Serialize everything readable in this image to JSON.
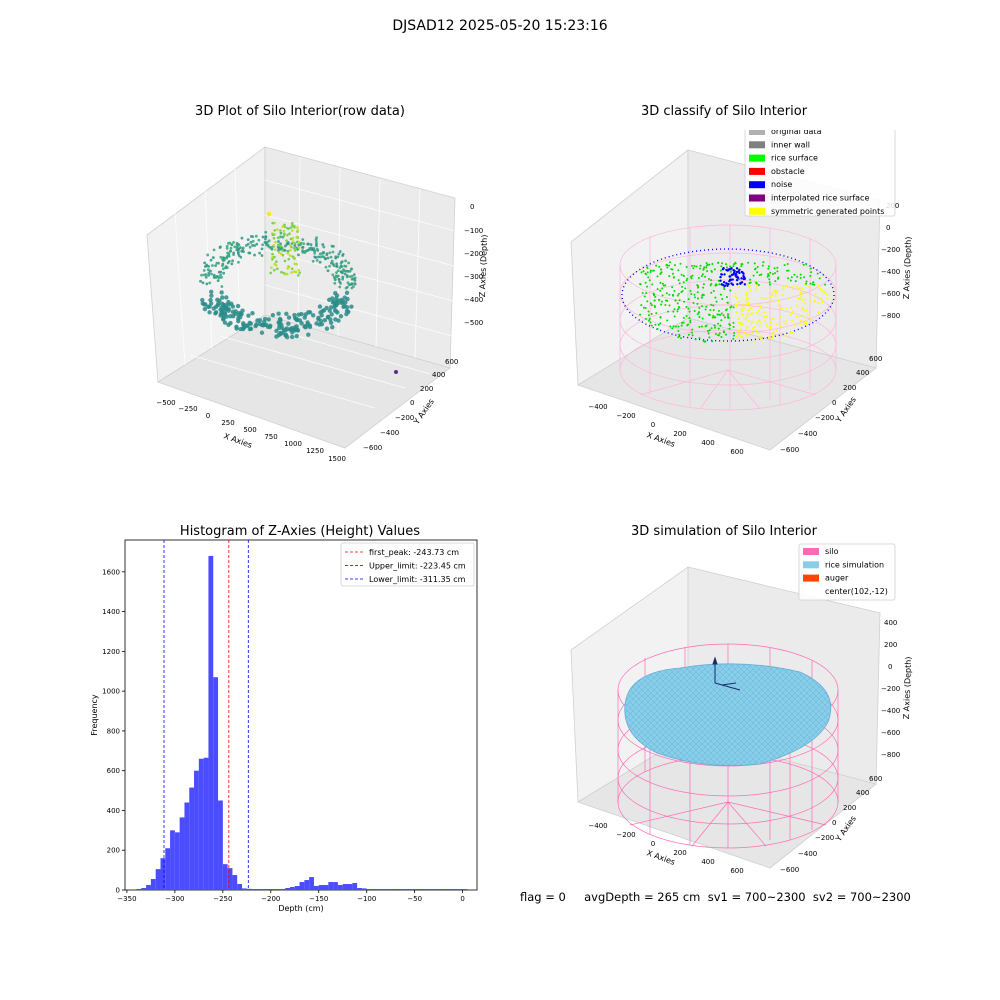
{
  "figure": {
    "suptitle": "DJSAD12 2025-05-20 15:23:16"
  },
  "panels": {
    "raw3d": {
      "title": "3D Plot of Silo Interior(row data)",
      "xlabel": "X Axies",
      "ylabel": "Y Axies",
      "zlabel": "Z Axies (Depth)",
      "xticks": [
        "−500",
        "−250",
        "0",
        "250",
        "500",
        "750",
        "1000",
        "1250",
        "1500"
      ],
      "yticks": [
        "−600",
        "−400",
        "−200",
        "0",
        "200",
        "400",
        "600"
      ],
      "zticks": [
        "0",
        "−100",
        "−200",
        "−300",
        "−400",
        "−500"
      ]
    },
    "classify3d": {
      "title": "3D classify of Silo Interior",
      "xlabel": "X Axies",
      "ylabel": "Y Axies",
      "zlabel": "Z Axies (Depth)",
      "xticks": [
        "−400",
        "−200",
        "0",
        "200",
        "400",
        "600"
      ],
      "yticks": [
        "−600",
        "−400",
        "−200",
        "0",
        "200",
        "400",
        "600"
      ],
      "zticks": [
        "200",
        "0",
        "−200",
        "−400",
        "−600",
        "−800"
      ],
      "legend": [
        {
          "label": "original data",
          "color": "#b0b0b0"
        },
        {
          "label": "inner wall",
          "color": "#808080"
        },
        {
          "label": "rice surface",
          "color": "#00ff00"
        },
        {
          "label": "obstacle",
          "color": "#ff0000"
        },
        {
          "label": "noise",
          "color": "#0000ff"
        },
        {
          "label": "interpolated rice surface",
          "color": "#800080"
        },
        {
          "label": "symmetric generated points",
          "color": "#ffff00"
        }
      ]
    },
    "simulation3d": {
      "title": "3D simulation of Silo Interior",
      "xlabel": "X Axies",
      "ylabel": "Y Axies",
      "zlabel": "Z Axies (Depth)",
      "xticks": [
        "−400",
        "−200",
        "0",
        "200",
        "400",
        "600"
      ],
      "yticks": [
        "−600",
        "−400",
        "−200",
        "0",
        "200",
        "400",
        "600"
      ],
      "zticks": [
        "400",
        "200",
        "0",
        "−200",
        "−400",
        "−600",
        "−800"
      ],
      "legend": [
        {
          "label": "silo",
          "color": "#ff69b4"
        },
        {
          "label": "rice simulation",
          "color": "#87ceeb"
        },
        {
          "label": "auger",
          "color": "#ff4500"
        },
        {
          "label": "center(102,-12)",
          "color": ""
        }
      ]
    },
    "footer": "flag = 0     avgDepth = 265 cm  sv1 = 700~2300  sv2 = 700~2300"
  },
  "chart_data": {
    "type": "bar",
    "title": "Histogram of Z-Axies (Height) Values",
    "xlabel": "Depth (cm)",
    "ylabel": "Frequency",
    "xlim": [
      -352,
      15
    ],
    "ylim": [
      0,
      1760
    ],
    "xticks": [
      -350,
      -300,
      -250,
      -200,
      -150,
      -100,
      -50,
      0
    ],
    "yticks": [
      0,
      200,
      400,
      600,
      800,
      1000,
      1200,
      1400,
      1600
    ],
    "bin_width": 5,
    "bar_color": "#4b4bff",
    "bins_start": [
      -340,
      -335,
      -330,
      -325,
      -320,
      -315,
      -310,
      -305,
      -300,
      -295,
      -290,
      -285,
      -280,
      -275,
      -270,
      -265,
      -260,
      -255,
      -250,
      -245,
      -240,
      -235,
      -230,
      -225,
      -220,
      -215,
      -210,
      -205,
      -200,
      -195,
      -190,
      -185,
      -180,
      -175,
      -170,
      -165,
      -160,
      -155,
      -150,
      -145,
      -140,
      -135,
      -130,
      -125,
      -120,
      -115,
      -110,
      -105,
      -100,
      -95,
      -90,
      -85,
      -80,
      -75,
      -70,
      -65,
      -60,
      -55,
      -50,
      -45,
      -40,
      -35,
      -30,
      -25,
      -20,
      -15,
      -10,
      -5,
      0
    ],
    "values": [
      5,
      10,
      25,
      55,
      105,
      160,
      210,
      300,
      290,
      365,
      440,
      515,
      600,
      660,
      665,
      1680,
      1070,
      450,
      130,
      110,
      75,
      30,
      8,
      6,
      5,
      5,
      5,
      5,
      5,
      5,
      5,
      10,
      15,
      20,
      40,
      50,
      65,
      20,
      25,
      25,
      40,
      40,
      25,
      30,
      30,
      35,
      10,
      8,
      5,
      5,
      5,
      5,
      5,
      5,
      5,
      5,
      5,
      5,
      5,
      5,
      5,
      5,
      5,
      5,
      5,
      5,
      5,
      5,
      5
    ],
    "vlines": [
      {
        "label": "first_peak: -243.73 cm",
        "x": -243.73,
        "color": "#ff0000"
      },
      {
        "label": "Upper_limit: -223.45 cm",
        "x": -223.45,
        "color": "#0000ff"
      },
      {
        "label": "Lower_limit: -311.35 cm",
        "x": -311.35,
        "color": "#0000ff"
      }
    ],
    "legend_placement": "top-right"
  }
}
